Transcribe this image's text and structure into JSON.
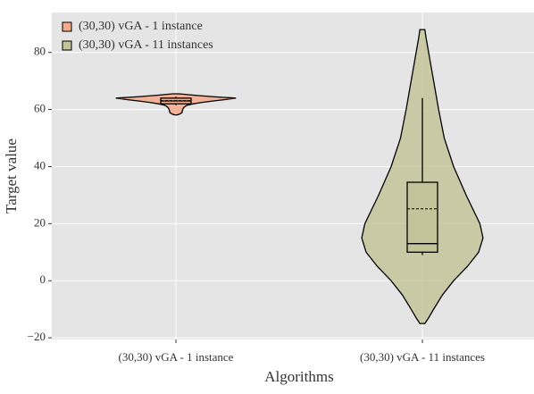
{
  "chart_data": {
    "type": "violin",
    "xlabel": "Algorithms",
    "ylabel": "Target value",
    "categories": [
      "(30,30) vGA - 1 instance",
      "(30,30) vGA - 11 instances"
    ],
    "ylim": [
      -20.6,
      94
    ],
    "yticks": [
      {
        "value": -20,
        "label": "−20"
      },
      0,
      20,
      40,
      60,
      80
    ],
    "grid": true,
    "legend": "upper left",
    "series": [
      {
        "name": "(30,30) vGA - 1 instance",
        "color": "#f4a98a",
        "density_y": [
          65.5,
          65,
          64.5,
          64,
          63.5,
          63,
          62.5,
          62,
          61.5,
          61,
          60.5,
          60,
          59.5,
          59,
          58.5,
          58.1
        ],
        "density": [
          0.05,
          0.3,
          0.6,
          0.96,
          0.8,
          0.6,
          0.42,
          0.28,
          0.18,
          0.14,
          0.12,
          0.11,
          0.1,
          0.1,
          0.07,
          0.02
        ],
        "whisker_low": 61.5,
        "q1": 62,
        "median": 63,
        "mean": 63.1,
        "q3": 64,
        "whisker_high": 64.5
      },
      {
        "name": "(30,30) vGA - 11 instances",
        "color": "#c4c49a",
        "density_y": [
          88,
          85,
          80,
          70,
          60,
          50,
          40,
          30,
          20,
          15,
          10,
          5,
          0,
          -5,
          -10,
          -13,
          -15
        ],
        "density": [
          0.04,
          0.06,
          0.1,
          0.18,
          0.26,
          0.35,
          0.5,
          0.7,
          0.92,
          0.97,
          0.9,
          0.72,
          0.5,
          0.32,
          0.18,
          0.1,
          0.04
        ],
        "whisker_low": 9,
        "q1": 10,
        "median": 13,
        "mean": 25.2,
        "q3": 34.5,
        "whisker_high": 64
      }
    ]
  }
}
